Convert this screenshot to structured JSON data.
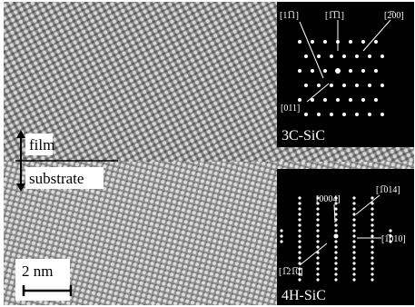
{
  "main_image": {
    "labels": {
      "film": "film",
      "substrate": "substrate",
      "scale_bar": "2 nm"
    }
  },
  "insets": [
    {
      "label": "3C-SiC",
      "spots": [
        "[11̅1]",
        "[1̅1̅1]",
        "[2̅00]",
        "[011]"
      ]
    },
    {
      "label": "4H-SiC",
      "spots": [
        "[0004]",
        "[1̅014]",
        "[1̅010]",
        "[1̅21̅0]"
      ]
    }
  ]
}
